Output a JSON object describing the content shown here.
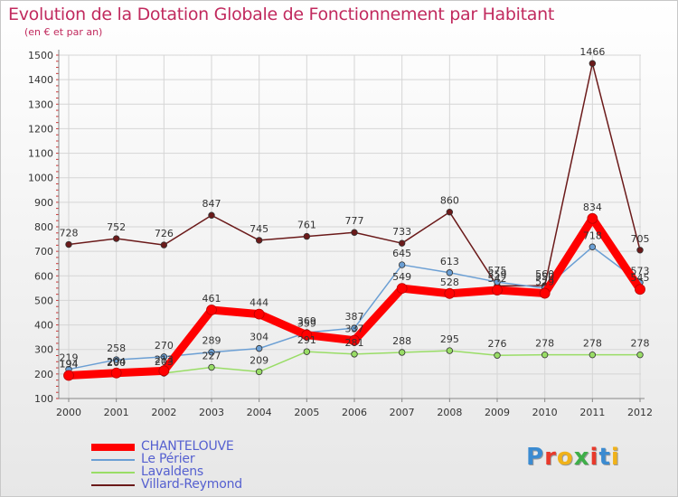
{
  "chart_data": {
    "type": "line",
    "title": "Evolution de la Dotation Globale de Fonctionnement par Habitant",
    "subtitle": "(en € et par an)",
    "xlabel": "",
    "ylabel": "",
    "ylim": [
      100,
      1500
    ],
    "y_ticks": [
      100,
      200,
      300,
      400,
      500,
      600,
      700,
      800,
      900,
      1000,
      1100,
      1200,
      1300,
      1400,
      1500
    ],
    "categories": [
      "2000",
      "2001",
      "2002",
      "2003",
      "2004",
      "2005",
      "2006",
      "2007",
      "2008",
      "2009",
      "2010",
      "2011",
      "2012"
    ],
    "grid": true,
    "legend_position": "bottom-left",
    "series": [
      {
        "name": "Villard-Reymond",
        "color": "#6b1a1a",
        "values": [
          728,
          752,
          726,
          847,
          745,
          761,
          777,
          733,
          860,
          559,
          560,
          1466,
          705
        ]
      },
      {
        "name": "Lavaldens",
        "color": "#99dd66",
        "values": [
          194,
          200,
          203,
          227,
          209,
          291,
          281,
          288,
          295,
          276,
          278,
          278,
          278
        ]
      },
      {
        "name": "Le Périer",
        "color": "#6b9fd4",
        "values": [
          219,
          258,
          270,
          289,
          304,
          369,
          387,
          645,
          613,
          575,
          550,
          718,
          573
        ]
      },
      {
        "name": "CHANTELOUVE",
        "color": "#ff0000",
        "values": [
          194,
          204,
          213,
          461,
          444,
          359,
          337,
          549,
          528,
          542,
          529,
          834,
          545
        ]
      }
    ]
  },
  "legend": {
    "items": [
      {
        "name": "CHANTELOUVE",
        "color": "#ff0000"
      },
      {
        "name": "Le Périer",
        "color": "#6b9fd4"
      },
      {
        "name": "Lavaldens",
        "color": "#99dd66"
      },
      {
        "name": "Villard-Reymond",
        "color": "#6b1a1a"
      }
    ]
  },
  "logo": {
    "text": "Proxiti",
    "colors": [
      "#3b8bd1",
      "#e8392b",
      "#f0b21a",
      "#3fae49",
      "#e8392b",
      "#3b8bd1",
      "#f0b21a"
    ]
  }
}
